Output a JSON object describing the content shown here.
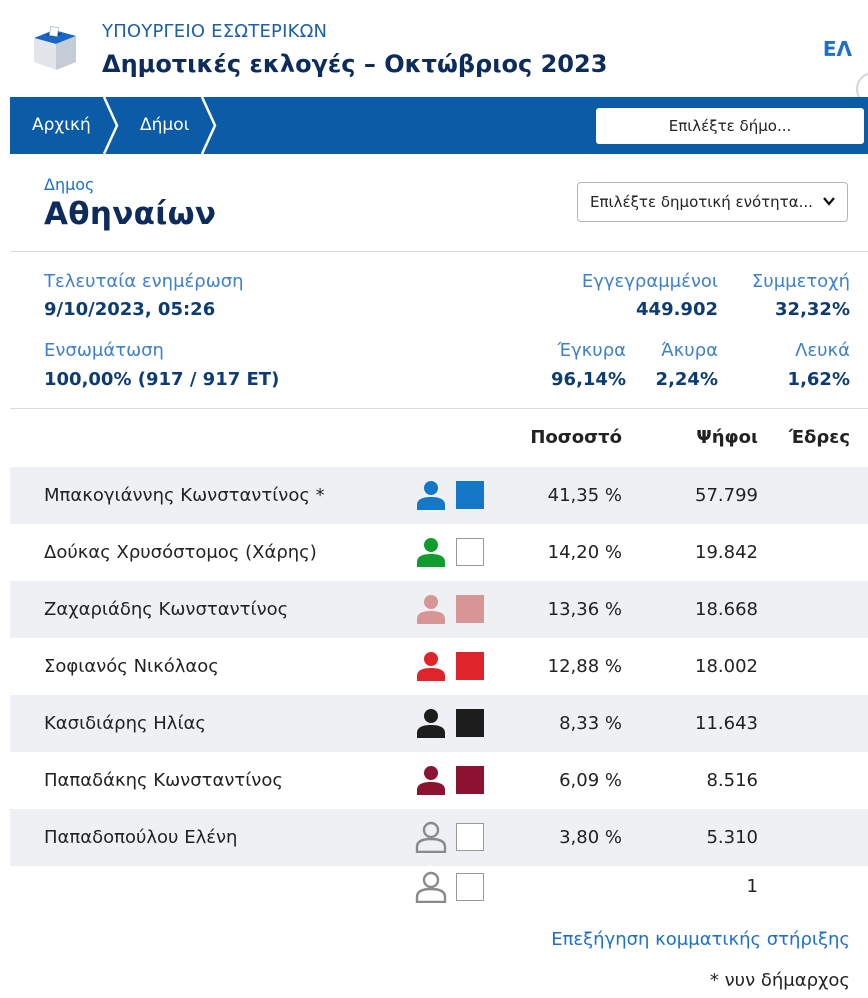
{
  "header": {
    "ministry": "ΥΠΟΥΡΓΕΙΟ ΕΣΩΤΕΡΙΚΩΝ",
    "title": "Δημοτικές εκλογές – Οκτώβριος 2023",
    "language": "ΕΛ"
  },
  "breadcrumb": {
    "home": "Αρχική",
    "municipalities": "Δήμοι"
  },
  "municipality_select": {
    "placeholder": "Επιλέξτε δήμο..."
  },
  "municipality": {
    "label": "Δημος",
    "name": "Αθηναίων"
  },
  "unit_select": {
    "placeholder": "Επιλέξτε δημοτική ενότητα..."
  },
  "stats": {
    "last_update_label": "Τελευταία ενημέρωση",
    "last_update_value": "9/10/2023, 05:26",
    "registered_label": "Εγγεγραμμένοι",
    "registered_value": "449.902",
    "turnout_label": "Συμμετοχή",
    "turnout_value": "32,32%",
    "integration_label": "Ενσωμάτωση",
    "integration_value": "100,00% (917 / 917 ΕΤ)",
    "valid_label": "Έγκυρα",
    "valid_value": "96,14%",
    "invalid_label": "Άκυρα",
    "invalid_value": "2,24%",
    "blank_label": "Λευκά",
    "blank_value": "1,62%"
  },
  "table": {
    "headers": {
      "percent": "Ποσοστό",
      "votes": "Ψήφοι",
      "seats": "Έδρες"
    },
    "rows": [
      {
        "name": "Μπακογιάννης Κωνσταντίνος *",
        "color": "#1477c8",
        "swatch": "#1477c8",
        "percent": "41,35 %",
        "votes": "57.799"
      },
      {
        "name": "Δούκας Χρυσόστομος (Χάρης)",
        "color": "#119c2e",
        "swatch": "#ffffff",
        "percent": "14,20 %",
        "votes": "19.842"
      },
      {
        "name": "Ζαχαριάδης Κωνσταντίνος",
        "color": "#d89595",
        "swatch": "#d89595",
        "percent": "13,36 %",
        "votes": "18.668"
      },
      {
        "name": "Σοφιανός Νικόλαος",
        "color": "#e0242b",
        "swatch": "#e0242b",
        "percent": "12,88 %",
        "votes": "18.002"
      },
      {
        "name": "Κασιδιάρης Ηλίας",
        "color": "#1d1d1d",
        "swatch": "#1d1d1d",
        "percent": "8,33 %",
        "votes": "11.643"
      },
      {
        "name": "Παπαδάκης Κωνσταντίνος",
        "color": "#8c1231",
        "swatch": "#8c1231",
        "percent": "6,09 %",
        "votes": "8.516"
      },
      {
        "name": "Παπαδοπούλου Ελένη",
        "color": "outline",
        "swatch": "#ffffff",
        "percent": "3,80 %",
        "votes": "5.310"
      },
      {
        "name": "",
        "color": "outline",
        "swatch": "#ffffff",
        "percent": "",
        "votes": "1"
      }
    ]
  },
  "explain_link": "Επεξήγηση κομματικής στήριξης",
  "footnote": "* νυν δήμαρχος"
}
